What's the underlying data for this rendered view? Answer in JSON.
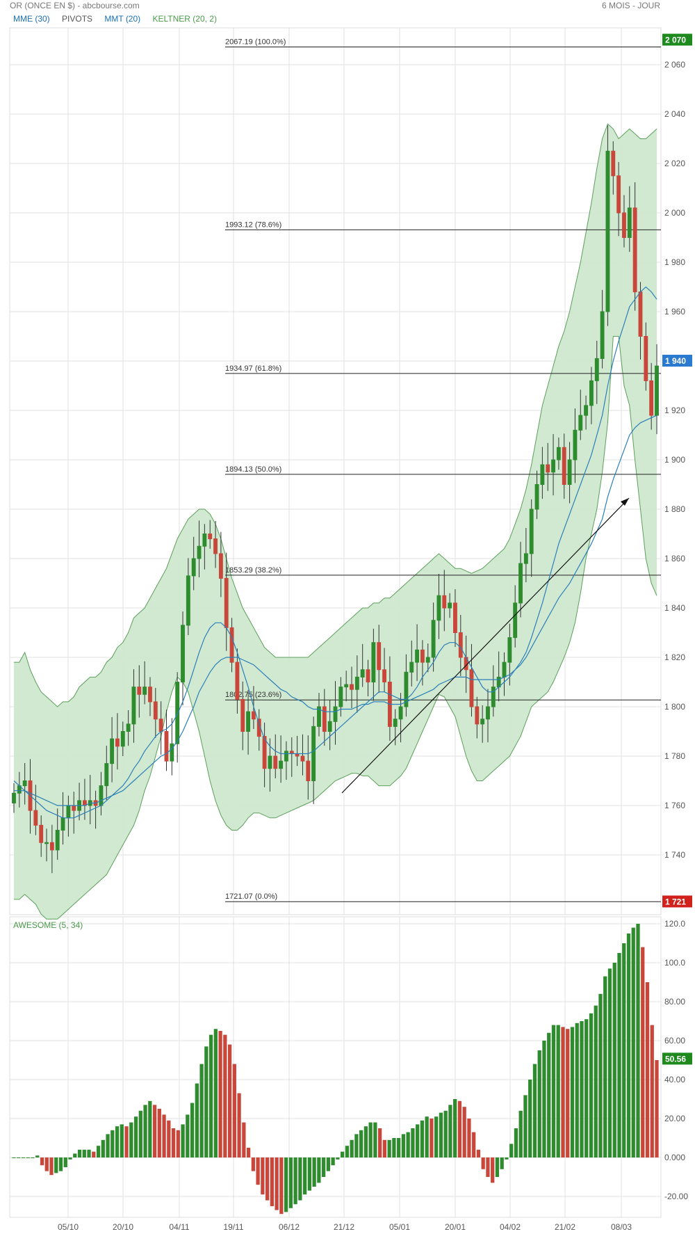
{
  "header": {
    "title": "OR (ONCE EN $) - abcbourse.com",
    "period": "6 MOIS - JOUR"
  },
  "legend": [
    {
      "label": "MME (30)",
      "color": "#1a6fb5"
    },
    {
      "label": "PIVOTS",
      "color": "#555555"
    },
    {
      "label": "MMT (20)",
      "color": "#1a6fb5"
    },
    {
      "label": "KELTNER (20, 2)",
      "color": "#4a9a4a"
    }
  ],
  "colors": {
    "up": "#2e8b2e",
    "down": "#c8473a",
    "band_fill": "#cfe8cf",
    "band_line": "#5aa05a",
    "ma": "#2a7fb8",
    "grid": "#e2e2e2"
  },
  "price_badges": [
    {
      "label": "2 070",
      "value": 2070,
      "color": "#1e8a1e"
    },
    {
      "label": "1 940",
      "value": 1940,
      "color": "#2a7ad0"
    },
    {
      "label": "1 721",
      "value": 1721,
      "color": "#d0211c"
    }
  ],
  "oscillator_badge": {
    "label": "50.56",
    "value": 50.56,
    "color": "#1e8a1e"
  },
  "chart_data": [
    {
      "type": "candlestick",
      "x_ticks": [
        "05/10",
        "20/10",
        "04/11",
        "19/11",
        "06/12",
        "21/12",
        "05/01",
        "20/01",
        "04/02",
        "21/02",
        "08/03"
      ],
      "y_ticks": [
        "1 740",
        "1 760",
        "1 780",
        "1 800",
        "1 820",
        "1 840",
        "1 860",
        "1 880",
        "1 900",
        "1 920",
        "1 940",
        "1 960",
        "1 980",
        "2 000",
        "2 020",
        "2 040",
        "2 060"
      ],
      "ylim": [
        1725,
        2070
      ],
      "fib_levels": [
        {
          "label": "2067.19  (100.0%)",
          "value": 2067.19
        },
        {
          "label": "1993.12  (78.6%)",
          "value": 1993.12
        },
        {
          "label": "1934.97  (61.8%)",
          "value": 1934.97
        },
        {
          "label": "1894.13  (50.0%)",
          "value": 1894.13
        },
        {
          "label": "1853.29  (38.2%)",
          "value": 1853.29
        },
        {
          "label": "1802.75  (23.6%)",
          "value": 1802.75
        },
        {
          "label": "1721.07  (0.0%)",
          "value": 1721.07
        }
      ],
      "closes": [
        1765,
        1768,
        1770,
        1758,
        1752,
        1745,
        1745,
        1742,
        1750,
        1755,
        1760,
        1758,
        1762,
        1760,
        1762,
        1760,
        1768,
        1777,
        1787,
        1784,
        1790,
        1793,
        1808,
        1805,
        1808,
        1802,
        1795,
        1790,
        1778,
        1785,
        1810,
        1833,
        1853,
        1860,
        1865,
        1870,
        1868,
        1862,
        1852,
        1832,
        1818,
        1803,
        1790,
        1798,
        1795,
        1788,
        1775,
        1780,
        1775,
        1778,
        1782,
        1781,
        1780,
        1778,
        1770,
        1792,
        1800,
        1790,
        1794,
        1800,
        1808,
        1809,
        1807,
        1812,
        1815,
        1810,
        1826,
        1815,
        1810,
        1792,
        1795,
        1800,
        1814,
        1818,
        1823,
        1818,
        1820,
        1835,
        1845,
        1840,
        1842,
        1830,
        1820,
        1815,
        1800,
        1793,
        1795,
        1800,
        1808,
        1812,
        1818,
        1828,
        1842,
        1858,
        1862,
        1880,
        1890,
        1898,
        1895,
        1900,
        1905,
        1890,
        1900,
        1912,
        1918,
        1922,
        1932,
        1941,
        1960,
        2025,
        2015,
        2000,
        1990,
        2002,
        1968,
        1950,
        1932,
        1918,
        1938
      ],
      "keltner_upper": [
        1818,
        1818,
        1822,
        1815,
        1810,
        1806,
        1804,
        1802,
        1800,
        1802,
        1802,
        1804,
        1808,
        1810,
        1812,
        1812,
        1814,
        1818,
        1820,
        1824,
        1826,
        1830,
        1836,
        1838,
        1840,
        1844,
        1848,
        1852,
        1856,
        1862,
        1868,
        1872,
        1876,
        1878,
        1880,
        1880,
        1878,
        1874,
        1868,
        1860,
        1852,
        1846,
        1840,
        1836,
        1832,
        1828,
        1824,
        1822,
        1820,
        1820,
        1820,
        1820,
        1820,
        1820,
        1820,
        1822,
        1824,
        1826,
        1828,
        1830,
        1832,
        1834,
        1836,
        1838,
        1840,
        1840,
        1842,
        1842,
        1844,
        1844,
        1846,
        1848,
        1850,
        1852,
        1854,
        1856,
        1858,
        1860,
        1862,
        1860,
        1858,
        1856,
        1856,
        1855,
        1854,
        1855,
        1856,
        1858,
        1860,
        1862,
        1864,
        1868,
        1874,
        1880,
        1888,
        1898,
        1910,
        1922,
        1930,
        1938,
        1946,
        1952,
        1960,
        1970,
        1980,
        1992,
        2004,
        2018,
        2030,
        2036,
        2034,
        2030,
        2032,
        2034,
        2032,
        2030,
        2030,
        2032,
        2034
      ],
      "keltner_lower": [
        1722,
        1722,
        1724,
        1722,
        1720,
        1716,
        1714,
        1714,
        1714,
        1716,
        1718,
        1720,
        1722,
        1724,
        1726,
        1728,
        1730,
        1732,
        1736,
        1740,
        1744,
        1748,
        1752,
        1758,
        1766,
        1772,
        1780,
        1788,
        1798,
        1806,
        1812,
        1810,
        1806,
        1798,
        1790,
        1780,
        1770,
        1762,
        1756,
        1752,
        1750,
        1750,
        1752,
        1755,
        1757,
        1757,
        1756,
        1755,
        1755,
        1756,
        1757,
        1758,
        1759,
        1760,
        1761,
        1762,
        1764,
        1766,
        1768,
        1770,
        1771,
        1772,
        1773,
        1773,
        1772,
        1772,
        1770,
        1768,
        1768,
        1768,
        1770,
        1772,
        1775,
        1780,
        1785,
        1790,
        1795,
        1800,
        1805,
        1804,
        1800,
        1796,
        1788,
        1780,
        1774,
        1770,
        1770,
        1772,
        1774,
        1776,
        1778,
        1780,
        1784,
        1788,
        1794,
        1800,
        1802,
        1804,
        1806,
        1810,
        1815,
        1820,
        1826,
        1834,
        1846,
        1860,
        1870,
        1880,
        1895,
        1915,
        1950,
        1950,
        1930,
        1922,
        1900,
        1880,
        1860,
        1850,
        1845
      ],
      "mme30": [
        1766,
        1766,
        1766,
        1765,
        1764,
        1763,
        1762,
        1761,
        1760,
        1760,
        1760,
        1760,
        1760,
        1760,
        1761,
        1761,
        1762,
        1763,
        1764,
        1765,
        1766,
        1768,
        1770,
        1772,
        1774,
        1776,
        1778,
        1780,
        1781,
        1783,
        1786,
        1790,
        1795,
        1800,
        1806,
        1810,
        1814,
        1817,
        1819,
        1820,
        1820,
        1820,
        1819,
        1818,
        1817,
        1815,
        1813,
        1811,
        1809,
        1807,
        1806,
        1804,
        1803,
        1802,
        1800,
        1799,
        1799,
        1798,
        1798,
        1798,
        1799,
        1799,
        1799,
        1800,
        1801,
        1801,
        1802,
        1802,
        1802,
        1801,
        1801,
        1801,
        1802,
        1803,
        1804,
        1805,
        1806,
        1807,
        1809,
        1810,
        1811,
        1812,
        1812,
        1812,
        1811,
        1811,
        1811,
        1811,
        1811,
        1811,
        1812,
        1813,
        1815,
        1817,
        1820,
        1824,
        1828,
        1832,
        1836,
        1840,
        1844,
        1847,
        1850,
        1854,
        1858,
        1862,
        1866,
        1871,
        1876,
        1885,
        1892,
        1898,
        1904,
        1910,
        1913,
        1915,
        1916,
        1917,
        1918
      ],
      "mmt20": [
        1770,
        1768,
        1766,
        1764,
        1762,
        1760,
        1758,
        1757,
        1756,
        1755,
        1755,
        1755,
        1756,
        1757,
        1758,
        1759,
        1760,
        1762,
        1764,
        1766,
        1768,
        1771,
        1775,
        1778,
        1782,
        1785,
        1788,
        1790,
        1791,
        1793,
        1797,
        1802,
        1808,
        1815,
        1822,
        1828,
        1832,
        1834,
        1834,
        1832,
        1828,
        1822,
        1815,
        1808,
        1800,
        1793,
        1787,
        1784,
        1782,
        1781,
        1781,
        1781,
        1781,
        1781,
        1781,
        1782,
        1784,
        1786,
        1788,
        1790,
        1792,
        1794,
        1796,
        1798,
        1800,
        1802,
        1804,
        1806,
        1806,
        1805,
        1804,
        1803,
        1803,
        1805,
        1808,
        1812,
        1815,
        1818,
        1822,
        1825,
        1826,
        1826,
        1824,
        1820,
        1816,
        1812,
        1808,
        1806,
        1806,
        1808,
        1810,
        1812,
        1815,
        1818,
        1822,
        1828,
        1835,
        1842,
        1850,
        1858,
        1866,
        1872,
        1878,
        1884,
        1890,
        1896,
        1902,
        1910,
        1918,
        1930,
        1940,
        1948,
        1955,
        1962,
        1965,
        1968,
        1970,
        1968,
        1965
      ]
    },
    {
      "type": "bar",
      "title": "AWESOME (5, 34)",
      "y_ticks": [
        "-20.00",
        "0.000",
        "20.00",
        "40.00",
        "60.00",
        "80.00",
        "100.0",
        "120.0"
      ],
      "ylim": [
        -30,
        122
      ],
      "values": [
        0,
        0,
        0,
        0,
        0,
        1,
        -4,
        -7,
        -9,
        -8,
        -7,
        -5,
        -1,
        2,
        4,
        4,
        4,
        3,
        6,
        9,
        12,
        14,
        16,
        17,
        16,
        18,
        21,
        24,
        27,
        29,
        27,
        25,
        22,
        19,
        15,
        14,
        17,
        22,
        28,
        38,
        48,
        57,
        63,
        66,
        65,
        63,
        58,
        48,
        33,
        18,
        5,
        -7,
        -14,
        -19,
        -22,
        -25,
        -27,
        -29,
        -28,
        -26,
        -24,
        -22,
        -19,
        -17,
        -15,
        -13,
        -10,
        -7,
        -4,
        -1,
        3,
        6,
        9,
        12,
        14,
        16,
        18,
        18,
        15,
        9,
        9,
        10,
        10,
        12,
        13,
        15,
        17,
        19,
        21,
        20,
        21,
        23,
        24,
        27,
        30,
        29,
        26,
        20,
        13,
        4,
        -6,
        -10,
        -13,
        -10,
        -6,
        -1,
        7,
        15,
        24,
        32,
        40,
        48,
        55,
        60,
        64,
        68,
        68,
        67,
        66,
        67,
        69,
        70,
        71,
        74,
        78,
        84,
        93,
        97,
        100,
        105,
        110,
        115,
        118,
        120,
        108,
        90,
        68,
        50
      ],
      "last_value": 50.56
    }
  ]
}
